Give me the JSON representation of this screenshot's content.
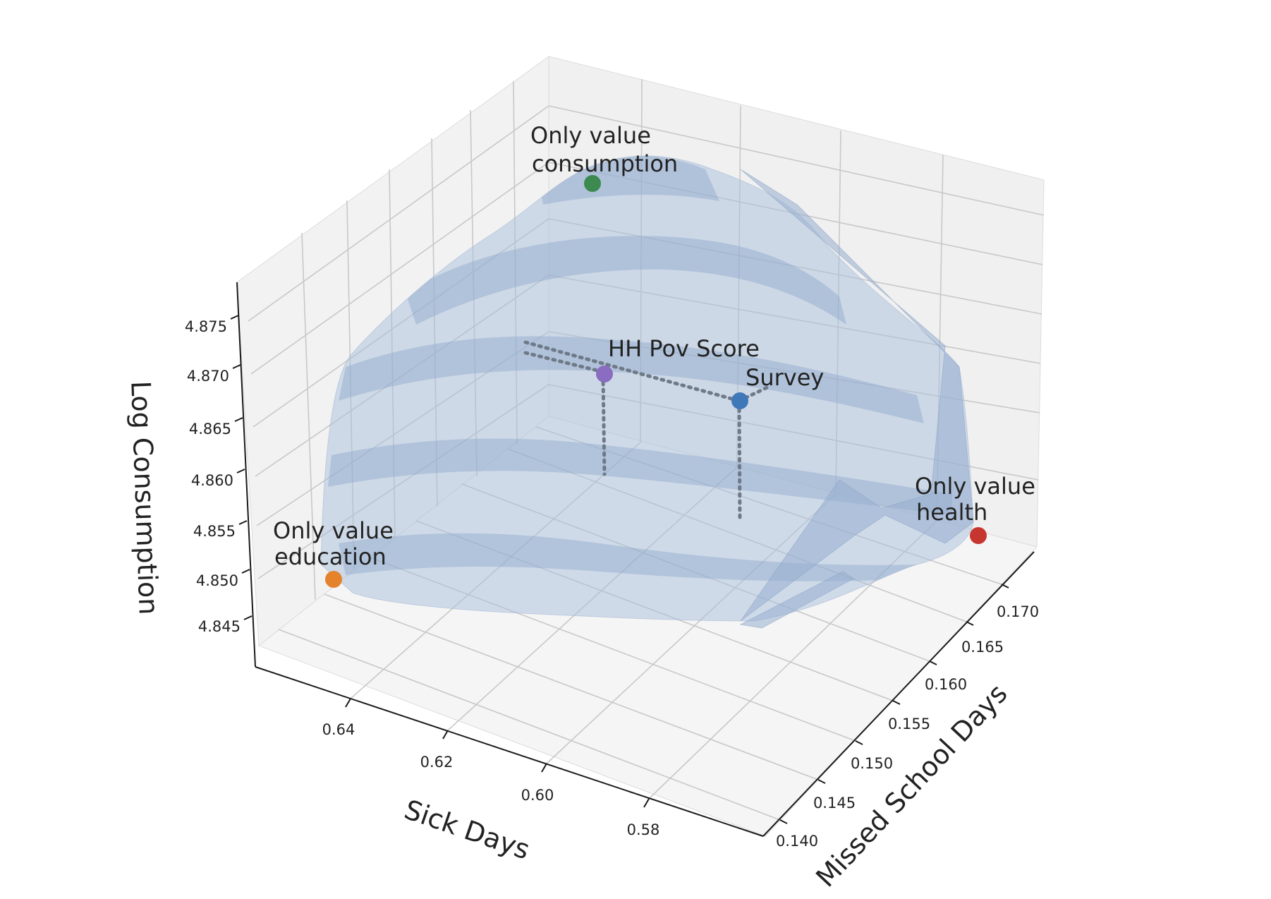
{
  "chart_data": {
    "type": "surface3d",
    "title": "",
    "axes": {
      "x": {
        "label": "Sick Days",
        "ticks": [
          "0.64",
          "0.62",
          "0.60",
          "0.58"
        ]
      },
      "y": {
        "label": "Missed School Days",
        "ticks": [
          "0.140",
          "0.145",
          "0.150",
          "0.155",
          "0.160",
          "0.165",
          "0.170"
        ]
      },
      "z": {
        "label": "Log Consumption",
        "ticks": [
          "4.845",
          "4.850",
          "4.855",
          "4.860",
          "4.865",
          "4.870",
          "4.875"
        ]
      }
    },
    "grid": true,
    "surface": {
      "description": "frontier surface",
      "color": "#a9bfdc"
    },
    "points": [
      {
        "label_lines": [
          "Only value",
          "consumption"
        ],
        "color": "#3c8a50"
      },
      {
        "label_lines": [
          "HH Pov Score"
        ],
        "color": "#8a6cc0"
      },
      {
        "label_lines": [
          "Survey"
        ],
        "color": "#3f78b8"
      },
      {
        "label_lines": [
          "Only value",
          "health"
        ],
        "color": "#c7352f"
      },
      {
        "label_lines": [
          "Only value",
          "education"
        ],
        "color": "#e5822c"
      }
    ]
  }
}
